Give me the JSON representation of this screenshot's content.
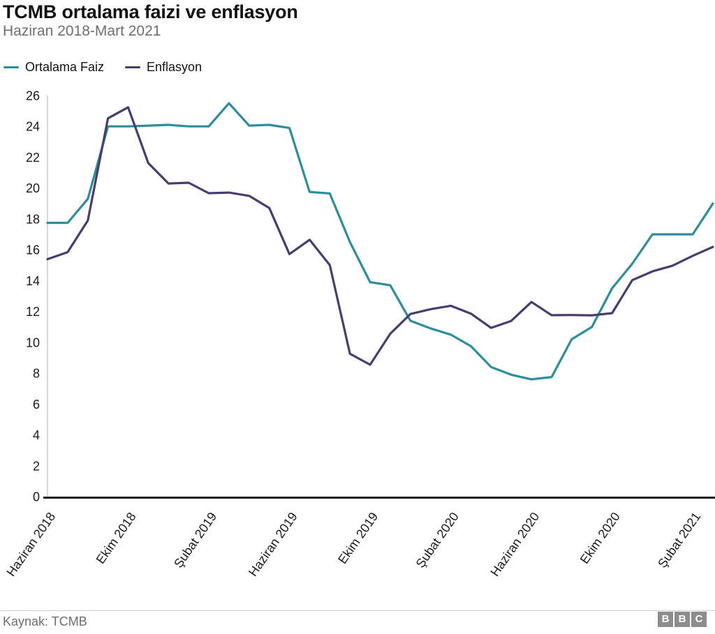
{
  "header": {
    "title": "TCMB ortalama faizi ve enflasyon",
    "subtitle": "Haziran 2018-Mart 2021"
  },
  "legend": {
    "items": [
      {
        "label": "Ortalama Faiz",
        "color": "#2b8e9b"
      },
      {
        "label": "Enflasyon",
        "color": "#493c6e"
      }
    ]
  },
  "chart_data": {
    "type": "line",
    "title": "TCMB ortalama faizi ve enflasyon",
    "subtitle": "Haziran 2018-Mart 2021",
    "x_start": "Haziran 2018",
    "x_end": "Mart 2021",
    "point_count": 34,
    "x_frequency": "monthly",
    "ylim": [
      0,
      26
    ],
    "y_ticks": [
      0,
      2,
      4,
      6,
      8,
      10,
      12,
      14,
      16,
      18,
      20,
      22,
      24,
      26
    ],
    "grid": "off",
    "legend_position": "top-left",
    "x_ticks": [
      {
        "month_index": 0,
        "label": "Haziran 2018"
      },
      {
        "month_index": 4,
        "label": "Ekim 2018"
      },
      {
        "month_index": 8,
        "label": "Şubat 2019"
      },
      {
        "month_index": 12,
        "label": "Haziran 2019"
      },
      {
        "month_index": 16,
        "label": "Ekim 2019"
      },
      {
        "month_index": 20,
        "label": "Şubat 2020"
      },
      {
        "month_index": 24,
        "label": "Haziran 2020"
      },
      {
        "month_index": 28,
        "label": "Ekim 2020"
      },
      {
        "month_index": 32,
        "label": "Şubat 2021"
      }
    ],
    "series": [
      {
        "name": "Ortalama Faiz",
        "color": "#2b8e9b",
        "values": [
          17.75,
          17.75,
          19.3,
          24.0,
          24.0,
          24.05,
          24.1,
          24.0,
          24.0,
          25.5,
          24.05,
          24.1,
          23.9,
          19.75,
          19.65,
          16.5,
          13.9,
          13.7,
          11.4,
          10.9,
          10.5,
          9.75,
          8.4,
          7.9,
          7.6,
          7.75,
          10.2,
          11.0,
          13.5,
          15.1,
          17.0,
          17.0,
          17.0,
          19.0
        ]
      },
      {
        "name": "Enflasyon",
        "color": "#493c6e",
        "values": [
          15.39,
          15.85,
          17.9,
          24.52,
          25.24,
          21.62,
          20.3,
          20.35,
          19.67,
          19.71,
          19.5,
          18.71,
          15.72,
          16.65,
          15.01,
          9.26,
          8.55,
          10.56,
          11.84,
          12.15,
          12.37,
          11.86,
          10.94,
          11.39,
          12.62,
          11.76,
          11.77,
          11.75,
          11.89,
          14.03,
          14.6,
          14.97,
          15.61,
          16.19
        ]
      }
    ]
  },
  "footer": {
    "source": "Kaynak: TCMB",
    "logo_letters": [
      "B",
      "B",
      "C"
    ]
  }
}
